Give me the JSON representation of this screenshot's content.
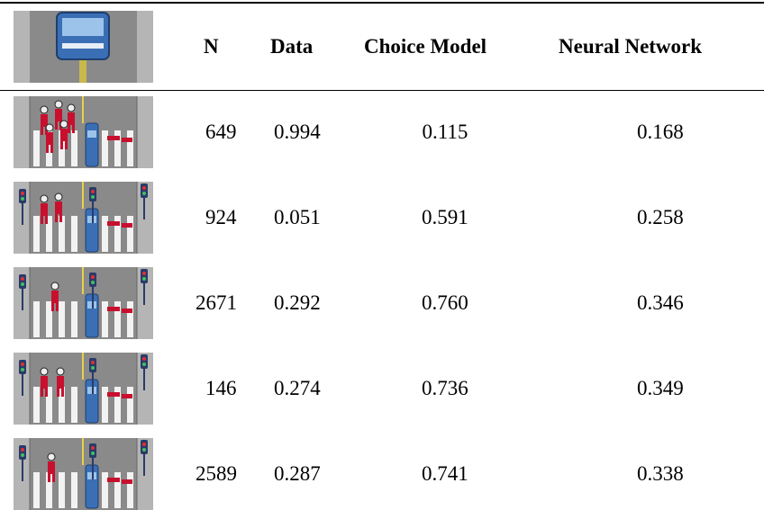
{
  "table": {
    "header": [
      "N",
      "Data",
      "Choice Model",
      "Neural Network"
    ],
    "rows": [
      [
        "649",
        "0.994",
        "0.115",
        "0.168"
      ],
      [
        "924",
        "0.051",
        "0.591",
        "0.258"
      ],
      [
        "2671",
        "0.292",
        "0.760",
        "0.346"
      ],
      [
        "146",
        "0.274",
        "0.736",
        "0.349"
      ],
      [
        "2589",
        "0.287",
        "0.741",
        "0.338"
      ]
    ]
  }
}
